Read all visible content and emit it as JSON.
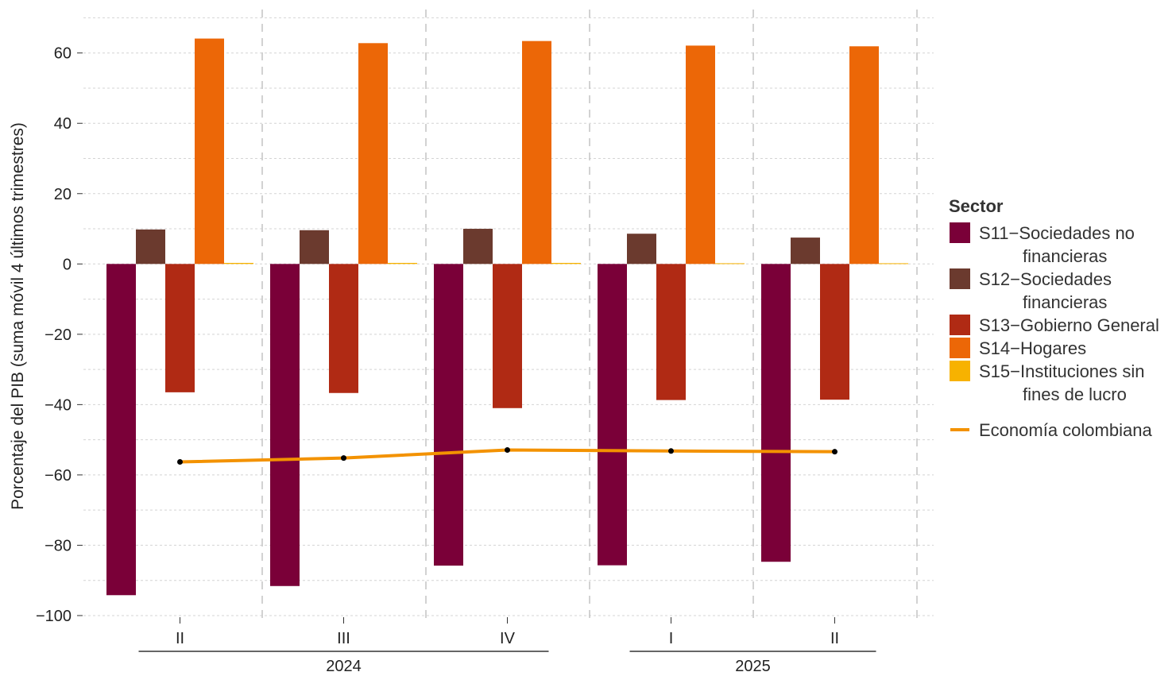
{
  "chart_data": {
    "type": "bar",
    "ylabel": "Porcentaje del PIB (suma móvil 4 últimos trimestres)",
    "xlabel": "",
    "ylim": [
      -100,
      70
    ],
    "yticks": [
      -100,
      -80,
      -60,
      -40,
      -20,
      0,
      20,
      40,
      60
    ],
    "grid": true,
    "legend_position": "right",
    "legend_title": "Sector",
    "categories": [
      "II",
      "III",
      "IV",
      "I",
      "II"
    ],
    "year_groups": [
      {
        "label": "2024",
        "categories": [
          "II",
          "III",
          "IV"
        ]
      },
      {
        "label": "2025",
        "categories": [
          "I",
          "II"
        ]
      }
    ],
    "series": [
      {
        "name": "S11−Sociedades no financieras",
        "legend_lines": [
          "S11−Sociedades no",
          "financieras"
        ],
        "color": "#7a0038",
        "values": [
          -94.2,
          -91.6,
          -85.8,
          -85.7,
          -84.7
        ]
      },
      {
        "name": "S12−Sociedades financieras",
        "legend_lines": [
          "S12−Sociedades",
          "financieras"
        ],
        "color": "#6b3a2e",
        "values": [
          9.8,
          9.6,
          10.0,
          8.6,
          7.5
        ]
      },
      {
        "name": "S13−Gobierno General",
        "legend_lines": [
          "S13−Gobierno General"
        ],
        "color": "#b02a14",
        "values": [
          -36.5,
          -36.7,
          -41.0,
          -38.7,
          -38.6
        ]
      },
      {
        "name": "S14−Hogares",
        "legend_lines": [
          "S14−Hogares"
        ],
        "color": "#ec6707",
        "values": [
          64.1,
          62.8,
          63.4,
          62.1,
          61.9
        ]
      },
      {
        "name": "S15−Instituciones sin fines de lucro",
        "legend_lines": [
          "S15−Instituciones sin",
          "fines de lucro"
        ],
        "color": "#f7b200",
        "values": [
          0.3,
          0.3,
          0.3,
          0.2,
          0.2
        ]
      }
    ],
    "line_series": {
      "name": "Economía colombiana",
      "color": "#f39200",
      "values": [
        -56.3,
        -55.2,
        -52.9,
        -53.2,
        -53.4
      ]
    }
  }
}
